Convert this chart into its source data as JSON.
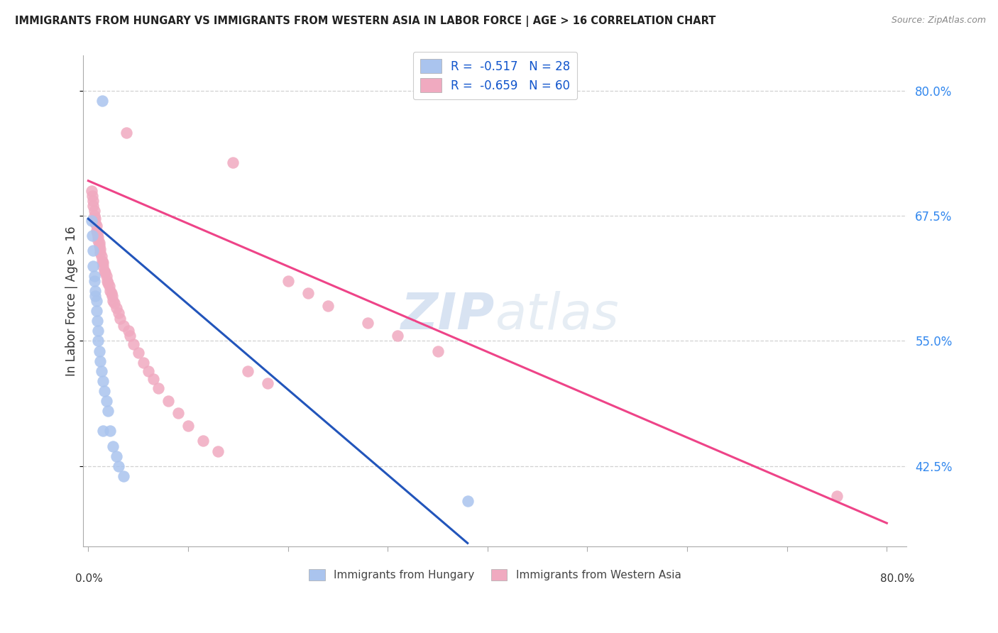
{
  "title": "IMMIGRANTS FROM HUNGARY VS IMMIGRANTS FROM WESTERN ASIA IN LABOR FORCE | AGE > 16 CORRELATION CHART",
  "source": "Source: ZipAtlas.com",
  "ylabel": "In Labor Force | Age > 16",
  "hungary_R": -0.517,
  "hungary_N": 28,
  "western_asia_R": -0.659,
  "western_asia_N": 60,
  "hungary_color": "#aac4ee",
  "western_asia_color": "#f0aac0",
  "hungary_line_color": "#2255bb",
  "western_asia_line_color": "#ee4488",
  "legend_label_hungary": "Immigrants from Hungary",
  "legend_label_western_asia": "Immigrants from Western Asia",
  "watermark_zip": "ZIP",
  "watermark_atlas": "atlas",
  "xlim": [
    -0.005,
    0.82
  ],
  "ylim": [
    0.345,
    0.835
  ],
  "x_ticks": [
    0.0,
    0.1,
    0.2,
    0.3,
    0.4,
    0.5,
    0.6,
    0.7,
    0.8
  ],
  "y_ticks": [
    0.425,
    0.55,
    0.675,
    0.8
  ],
  "hungary_line_x0": 0.0,
  "hungary_line_y0": 0.672,
  "hungary_line_x1": 0.38,
  "hungary_line_y1": 0.348,
  "wa_line_x0": 0.0,
  "wa_line_y0": 0.71,
  "wa_line_x1": 0.8,
  "wa_line_y1": 0.368,
  "hung_x": [
    0.003,
    0.004,
    0.005,
    0.005,
    0.006,
    0.006,
    0.007,
    0.007,
    0.008,
    0.008,
    0.009,
    0.01,
    0.01,
    0.011,
    0.012,
    0.013,
    0.014,
    0.015,
    0.016,
    0.018,
    0.02,
    0.022,
    0.025,
    0.028,
    0.03,
    0.035,
    0.015,
    0.38
  ],
  "hung_y": [
    0.67,
    0.655,
    0.64,
    0.625,
    0.615,
    0.61,
    0.6,
    0.595,
    0.59,
    0.58,
    0.57,
    0.56,
    0.55,
    0.54,
    0.53,
    0.52,
    0.79,
    0.51,
    0.5,
    0.49,
    0.48,
    0.46,
    0.445,
    0.435,
    0.425,
    0.415,
    0.46,
    0.39
  ],
  "wa_x": [
    0.003,
    0.004,
    0.005,
    0.005,
    0.006,
    0.006,
    0.007,
    0.007,
    0.008,
    0.008,
    0.009,
    0.01,
    0.01,
    0.011,
    0.011,
    0.012,
    0.012,
    0.013,
    0.014,
    0.015,
    0.015,
    0.016,
    0.017,
    0.018,
    0.019,
    0.02,
    0.021,
    0.022,
    0.023,
    0.024,
    0.025,
    0.026,
    0.028,
    0.03,
    0.032,
    0.035,
    0.038,
    0.04,
    0.042,
    0.045,
    0.05,
    0.055,
    0.06,
    0.065,
    0.07,
    0.08,
    0.09,
    0.1,
    0.115,
    0.13,
    0.145,
    0.16,
    0.18,
    0.2,
    0.22,
    0.24,
    0.28,
    0.31,
    0.35,
    0.75
  ],
  "wa_y": [
    0.7,
    0.695,
    0.69,
    0.685,
    0.68,
    0.675,
    0.672,
    0.668,
    0.665,
    0.66,
    0.657,
    0.654,
    0.65,
    0.648,
    0.645,
    0.642,
    0.638,
    0.635,
    0.63,
    0.628,
    0.625,
    0.62,
    0.618,
    0.615,
    0.61,
    0.608,
    0.605,
    0.6,
    0.598,
    0.595,
    0.59,
    0.588,
    0.583,
    0.578,
    0.572,
    0.565,
    0.758,
    0.56,
    0.555,
    0.547,
    0.538,
    0.528,
    0.52,
    0.512,
    0.503,
    0.49,
    0.478,
    0.465,
    0.45,
    0.44,
    0.728,
    0.52,
    0.508,
    0.61,
    0.598,
    0.585,
    0.568,
    0.555,
    0.54,
    0.395
  ]
}
